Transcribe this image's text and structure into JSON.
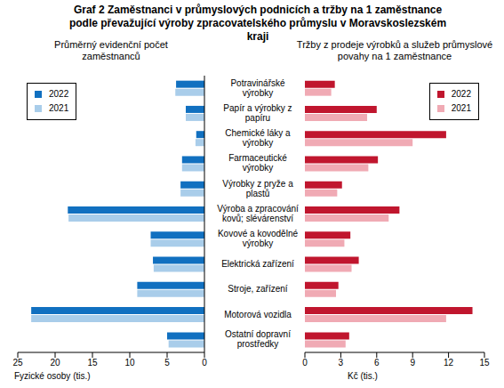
{
  "title": "Graf 2 Zaměstnanci v průmyslových podnicích a tržby na 1 zaměstnance podle převažující výroby zpracovatelského průmyslu v Moravskoslezském kraji",
  "chart_data": [
    {
      "type": "bar",
      "orientation": "horizontal",
      "subtitle": "Průměrný evidenční počet zaměstnanců",
      "x_label": "Fyzické osoby (tis.)",
      "categories": [
        "Potravinářské výrobky",
        "Papír a výrobky z papíru",
        "Chemické láky a výrobky",
        "Farmaceutické výrobky",
        "Výrobky z pryže a plastů",
        "Výroba a zpracování kovů; slévárenství",
        "Kovové a kovodělné výrobky",
        "Elektrická zařízení",
        "Stroje, zařízení",
        "Motorová vozidla",
        "Ostatní dopravní prostředky"
      ],
      "series": [
        {
          "name": "2022",
          "color": "#1170c0",
          "values": [
            3.8,
            2.5,
            1.1,
            3.0,
            3.2,
            18.3,
            7.2,
            6.9,
            9.0,
            23.2,
            5.0
          ]
        },
        {
          "name": "2021",
          "color": "#a9cdea",
          "values": [
            3.9,
            2.5,
            1.2,
            3.0,
            3.2,
            18.2,
            7.2,
            6.8,
            9.0,
            23.2,
            4.8
          ]
        }
      ],
      "xlim": [
        0,
        25
      ],
      "xticks": [
        0,
        5,
        10,
        15,
        20,
        25
      ],
      "legend": "top-left",
      "grid": false
    },
    {
      "type": "bar",
      "orientation": "horizontal",
      "subtitle": "Tržby z prodeje výrobků a služeb průmyslové povahy na 1 zaměstnance",
      "x_label": "Kč (tis.)",
      "categories": [
        "Potravinářské výrobky",
        "Papír a výrobky z papíru",
        "Chemické láky a výrobky",
        "Farmaceutické výrobky",
        "Výrobky z pryže a plastů",
        "Výroba a zpracování kovů; slévárenství",
        "Kovové a kovodělné výrobky",
        "Elektrická zařízení",
        "Stroje, zařízení",
        "Motorová vozidla",
        "Ostatní dopravní prostředky"
      ],
      "series": [
        {
          "name": "2022",
          "color": "#c0162e",
          "values": [
            2.5,
            6.0,
            11.8,
            6.1,
            3.1,
            7.9,
            3.8,
            4.5,
            2.8,
            14.0,
            3.7
          ]
        },
        {
          "name": "2021",
          "color": "#f0aab4",
          "values": [
            2.2,
            5.2,
            9.0,
            5.3,
            2.7,
            7.0,
            3.3,
            3.9,
            2.6,
            11.8,
            3.4
          ]
        }
      ],
      "xlim": [
        0,
        15
      ],
      "xticks": [
        0,
        3,
        6,
        9,
        12,
        15
      ],
      "legend": "top-right",
      "grid": false
    }
  ]
}
